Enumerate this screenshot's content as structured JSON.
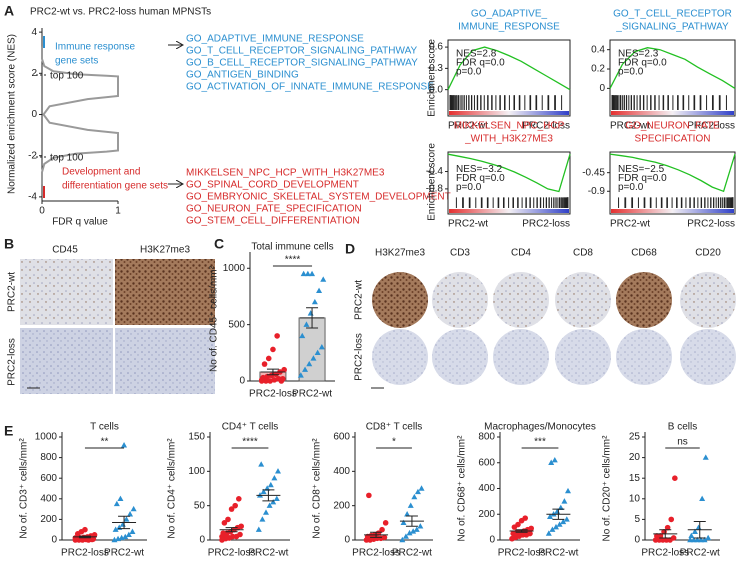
{
  "panel_a": {
    "label": "A",
    "title": "PRC2-wt vs. PRC2-loss human MPNSTs",
    "ylabel": "Normalized enrichment score (NES)",
    "xlabel": "FDR q value",
    "xlim": [
      0,
      1
    ],
    "ylim": [
      -4.2,
      4.2
    ],
    "xticks": [
      0,
      1
    ],
    "yticks": [
      4,
      2,
      0,
      -2,
      -4
    ],
    "curve": {
      "color": "#9a9a9a",
      "x": [
        0,
        0,
        0.03,
        0.15,
        0.45,
        0.85,
        1,
        1,
        0.6,
        0.1,
        0.02,
        0.1,
        0.6,
        1,
        1,
        0.85,
        0.45,
        0.15,
        0.03,
        0,
        0
      ],
      "y": [
        3.3,
        2.7,
        2.35,
        2.1,
        1.95,
        1.88,
        1.85,
        0.9,
        0.75,
        0.4,
        0,
        -0.4,
        -0.75,
        -0.9,
        -1.75,
        -1.8,
        -1.9,
        -2.1,
        -2.4,
        -2.8,
        -3.4
      ]
    },
    "up_group": {
      "color": "#2b8fd0",
      "lines": [
        "Immune response",
        "gene sets"
      ],
      "top": "top 100",
      "sets": [
        "GO_ADAPTIVE_IMMUNE_RESPONSE",
        "GO_T_CELL_RECEPTOR_SIGNALING_PATHWAY",
        "GO_B_CELL_RECEPTOR_SIGNALING_PATHWAY",
        "GO_ANTIGEN_BINDING",
        "GO_ACTIVATION_OF_INNATE_IMMUNE_RESPONSE"
      ]
    },
    "down_group": {
      "color": "#d62a2a",
      "lines": [
        "Development and",
        "differentiation gene sets"
      ],
      "top": "top 100",
      "sets": [
        "MIKKELSEN_NPC_HCP_WITH_H3K27ME3",
        "GO_SPINAL_CORD_DEVELOPMENT",
        "GO_EMBRYONIC_SKELETAL_SYSTEM_DEVELOPMENT",
        "GO_NEURON_FATE_SPECIFICATION",
        "GO_STEM_CELL_DIFFERENTIATION"
      ]
    },
    "gsea_ylabel": "Enrichment score",
    "gsea": [
      {
        "title": [
          "GO_ADAPTIVE_",
          "IMMUNE_RESPONSE"
        ],
        "color": "#2b8fd0",
        "ylim": [
          -0.05,
          0.7
        ],
        "yticks": [
          0.6,
          0.3,
          {
            "value": 0,
            "label": "0.0"
          }
        ],
        "stats": [
          "NES=2.8",
          "FDR q=0.0",
          "p=0.0"
        ],
        "es": [
          0,
          0.35,
          0.55,
          0.6,
          0.55,
          0.48,
          0.4,
          0.3,
          0.2,
          0.1,
          0
        ],
        "xlabels": [
          "PRC2-wt",
          "PRC2-loss"
        ]
      },
      {
        "title": [
          "GO_T_CELL_RECEPTOR",
          "_SIGNALING_PATHWAY"
        ],
        "color": "#2b8fd0",
        "ylim": [
          -0.05,
          0.5
        ],
        "yticks": [
          0.4,
          0.2,
          0
        ],
        "stats": [
          "NES=2.3",
          "FDR q=0.0",
          "p=0.0"
        ],
        "es": [
          0,
          0.25,
          0.38,
          0.42,
          0.4,
          0.35,
          0.3,
          0.22,
          0.15,
          0.08,
          0
        ],
        "xlabels": [
          "PRC2-wt",
          "PRC2-loss"
        ]
      },
      {
        "title": [
          "MIKKELSEN_NPC_HCP",
          "_WITH_H3K27ME3"
        ],
        "color": "#d62a2a",
        "ylim": [
          -0.95,
          0.05
        ],
        "yticks": [
          -0.4,
          -0.8
        ],
        "stats": [
          "NES=−3.2",
          "FDR q=0.0",
          "p=0.0"
        ],
        "es": [
          0,
          -0.05,
          -0.1,
          -0.16,
          -0.23,
          -0.31,
          -0.41,
          -0.53,
          -0.66,
          -0.8,
          -0.86,
          0
        ],
        "xlabels": [
          "PRC2-wt",
          "PRC2-loss"
        ]
      },
      {
        "title": [
          "GO_NEURON_FATE",
          "SPECIFICATION"
        ],
        "color": "#d62a2a",
        "ylim": [
          -1.0,
          0.05
        ],
        "yticks": [
          -0.45,
          -0.9
        ],
        "stats": [
          "NES=−2.5",
          "FDR q=0.0",
          "p=0.0"
        ],
        "es": [
          0,
          -0.04,
          -0.08,
          -0.14,
          -0.2,
          -0.28,
          -0.38,
          -0.5,
          -0.64,
          -0.8,
          -0.9,
          0
        ],
        "xlabels": [
          "PRC2-wt",
          "PRC2-loss"
        ]
      }
    ]
  },
  "panel_b": {
    "label": "B",
    "columns": [
      "CD45",
      "H3K27me3"
    ],
    "rows": [
      "PRC2-wt",
      "PRC2-loss"
    ]
  },
  "panel_c": {
    "label": "C",
    "title": "Total immune cells",
    "ylabel": "No of. CD45⁺ cells/mm²",
    "ylim": [
      0,
      1100
    ],
    "yticks": [
      0,
      500,
      1000
    ],
    "sig": "****",
    "groups": [
      {
        "name": "PRC2-loss",
        "color": "#e8202a",
        "mean": 80,
        "sem": 25,
        "values": [
          0,
          0,
          0,
          10,
          20,
          20,
          30,
          40,
          50,
          60,
          80,
          100,
          150,
          200,
          280,
          400,
          0,
          10
        ]
      },
      {
        "name": "PRC2-wt",
        "color": "#2b8fd0",
        "mean": 560,
        "sem": 90,
        "values": [
          50,
          100,
          150,
          200,
          250,
          300,
          400,
          500,
          600,
          700,
          800,
          900,
          950,
          950,
          950
        ]
      }
    ]
  },
  "panel_d": {
    "label": "D",
    "columns": [
      "H3K27me3",
      "CD3",
      "CD4",
      "CD8",
      "CD68",
      "CD20"
    ],
    "rows": [
      "PRC2-wt",
      "PRC2-loss"
    ]
  },
  "panel_e": {
    "label": "E",
    "plots": [
      {
        "title": "T cells",
        "ylabel": "No of. CD3⁺ cells/mm²",
        "ylim": [
          0,
          1000
        ],
        "yticks": [
          0,
          200,
          400,
          600,
          800,
          1000
        ],
        "sig": "**",
        "groups": [
          {
            "name": "PRC2-loss",
            "color": "#e8202a",
            "mean": 30,
            "sem": 8,
            "values": [
              0,
              0,
              0,
              5,
              10,
              10,
              15,
              20,
              25,
              30,
              40,
              50,
              60,
              80,
              100,
              0,
              5,
              20
            ]
          },
          {
            "name": "PRC2-wt",
            "color": "#2b8fd0",
            "mean": 170,
            "sem": 60,
            "values": [
              0,
              10,
              20,
              30,
              50,
              80,
              100,
              120,
              150,
              200,
              250,
              300,
              350,
              400,
              920
            ]
          }
        ]
      },
      {
        "title": "CD4⁺ T cells",
        "ylabel": "No of. CD4⁺ cells/mm²",
        "ylim": [
          0,
          150
        ],
        "yticks": [
          0,
          50,
          100,
          150
        ],
        "sig": "****",
        "groups": [
          {
            "name": "PRC2-loss",
            "color": "#e8202a",
            "mean": 15,
            "sem": 3,
            "values": [
              0,
              2,
              3,
              5,
              5,
              8,
              10,
              10,
              12,
              15,
              18,
              20,
              25,
              30,
              45,
              50,
              60,
              5,
              8,
              3
            ]
          },
          {
            "name": "PRC2-wt",
            "color": "#2b8fd0",
            "mean": 65,
            "sem": 8,
            "values": [
              15,
              30,
              40,
              50,
              55,
              60,
              65,
              70,
              75,
              80,
              90,
              100,
              110
            ]
          }
        ]
      },
      {
        "title": "CD8⁺ T cells",
        "ylabel": "No of. CD8⁺ cells/mm²",
        "ylim": [
          0,
          600
        ],
        "yticks": [
          0,
          200,
          400,
          600
        ],
        "sig": "*",
        "groups": [
          {
            "name": "PRC2-loss",
            "color": "#e8202a",
            "mean": 30,
            "sem": 15,
            "values": [
              0,
              0,
              5,
              10,
              10,
              15,
              20,
              25,
              30,
              40,
              60,
              100,
              260
            ]
          },
          {
            "name": "PRC2-wt",
            "color": "#2b8fd0",
            "mean": 110,
            "sem": 30,
            "values": [
              0,
              20,
              40,
              50,
              60,
              80,
              100,
              150,
              200,
              250,
              280,
              300
            ]
          }
        ]
      },
      {
        "title": "Macrophages/Monocytes",
        "ylabel": "No of. CD68⁺ cells/mm²",
        "ylim": [
          0,
          800
        ],
        "yticks": [
          0,
          200,
          400,
          600,
          800
        ],
        "sig": "***",
        "groups": [
          {
            "name": "PRC2-loss",
            "color": "#e8202a",
            "mean": 70,
            "sem": 10,
            "values": [
              10,
              20,
              30,
              40,
              40,
              50,
              50,
              60,
              60,
              70,
              80,
              90,
              100,
              120,
              150,
              170
            ]
          },
          {
            "name": "PRC2-wt",
            "color": "#2b8fd0",
            "mean": 200,
            "sem": 40,
            "values": [
              50,
              80,
              100,
              120,
              140,
              160,
              180,
              200,
              220,
              250,
              300,
              380,
              600,
              620
            ]
          }
        ]
      },
      {
        "title": "B cells",
        "ylabel": "No of. CD20⁺ cells/mm²",
        "ylim": [
          0,
          25
        ],
        "yticks": [
          0,
          5,
          10,
          15,
          20,
          25
        ],
        "sig": "ns",
        "groups": [
          {
            "name": "PRC2-loss",
            "color": "#e8202a",
            "mean": 1.5,
            "sem": 1,
            "values": [
              0,
              0,
              0,
              0,
              0,
              0.5,
              1,
              1,
              2,
              3,
              5,
              15
            ]
          },
          {
            "name": "PRC2-wt",
            "color": "#2b8fd0",
            "mean": 2.5,
            "sem": 2,
            "values": [
              0,
              0,
              0,
              0,
              0,
              0.5,
              1,
              2,
              3,
              10,
              20
            ]
          }
        ]
      }
    ]
  }
}
